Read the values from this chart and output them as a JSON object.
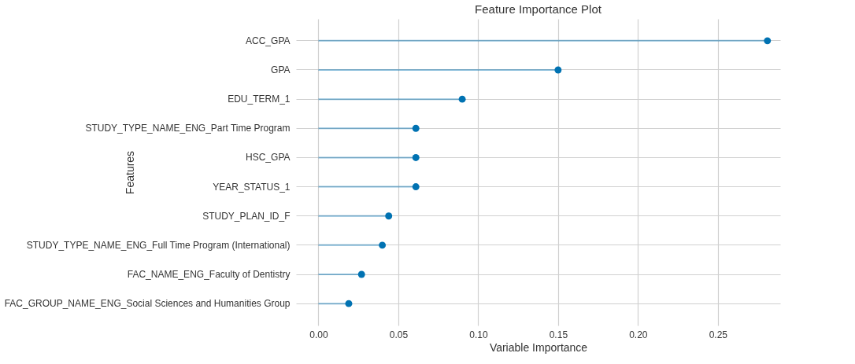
{
  "chart_data": {
    "type": "lollipop",
    "title": "Feature Importance Plot",
    "xlabel": "Variable Importance",
    "ylabel": "Features",
    "orientation": "horizontal",
    "categories": [
      "ACC_GPA",
      "GPA",
      "EDU_TERM_1",
      "STUDY_TYPE_NAME_ENG_Part Time Program",
      "HSC_GPA",
      "YEAR_STATUS_1",
      "STUDY_PLAN_ID_F",
      "STUDY_TYPE_NAME_ENG_Full Time Program (International)",
      "FAC_NAME_ENG_Faculty of Dentistry",
      "FAC_GROUP_NAME_ENG_Social Sciences and Humanities Group"
    ],
    "series": [
      {
        "color": "#0072b2",
        "values": [
          0.281,
          0.15,
          0.09,
          0.061,
          0.061,
          0.061,
          0.044,
          0.04,
          0.027,
          0.019
        ]
      }
    ],
    "xlim": [
      -0.014,
      0.289
    ],
    "xticks": [
      {
        "value": 0,
        "label": "0.00"
      },
      0.05,
      {
        "value": 0.1,
        "label": "0.10"
      },
      0.15,
      {
        "value": 0.2,
        "label": "0.20"
      },
      0.25
    ],
    "grid": true,
    "marker": "circle"
  }
}
